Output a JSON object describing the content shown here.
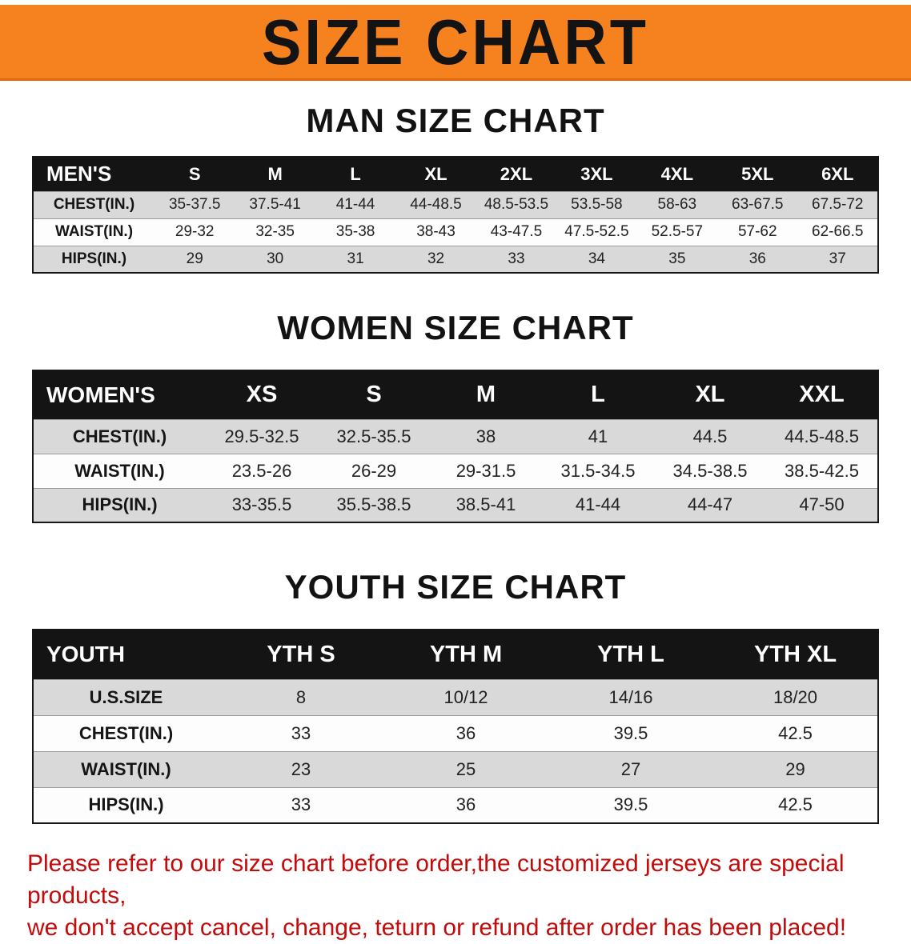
{
  "banner": {
    "title": "SIZE CHART"
  },
  "colors": {
    "banner_bg": "#f5821e",
    "table_header_bg": "#141414",
    "row_alt_gray": "#d9d9d9",
    "disclaimer_red": "#c20b0b"
  },
  "sections": {
    "men": {
      "heading": "MAN SIZE CHART",
      "table": {
        "header": [
          "MEN'S",
          "S",
          "M",
          "L",
          "XL",
          "2XL",
          "3XL",
          "4XL",
          "5XL",
          "6XL"
        ],
        "rows": [
          [
            "CHEST(IN.)",
            "35-37.5",
            "37.5-41",
            "41-44",
            "44-48.5",
            "48.5-53.5",
            "53.5-58",
            "58-63",
            "63-67.5",
            "67.5-72"
          ],
          [
            "WAIST(IN.)",
            "29-32",
            "32-35",
            "35-38",
            "38-43",
            "43-47.5",
            "47.5-52.5",
            "52.5-57",
            "57-62",
            "62-66.5"
          ],
          [
            "HIPS(IN.)",
            "29",
            "30",
            "31",
            "32",
            "33",
            "34",
            "35",
            "36",
            "37"
          ]
        ]
      }
    },
    "women": {
      "heading": "WOMEN SIZE CHART",
      "table": {
        "header": [
          "WOMEN'S",
          "XS",
          "S",
          "M",
          "L",
          "XL",
          "XXL"
        ],
        "rows": [
          [
            "CHEST(IN.)",
            "29.5-32.5",
            "32.5-35.5",
            "38",
            "41",
            "44.5",
            "44.5-48.5"
          ],
          [
            "WAIST(IN.)",
            "23.5-26",
            "26-29",
            "29-31.5",
            "31.5-34.5",
            "34.5-38.5",
            "38.5-42.5"
          ],
          [
            "HIPS(IN.)",
            "33-35.5",
            "35.5-38.5",
            "38.5-41",
            "41-44",
            "44-47",
            "47-50"
          ]
        ]
      }
    },
    "youth": {
      "heading": "YOUTH SIZE CHART",
      "table": {
        "header": [
          "YOUTH",
          "YTH S",
          "YTH M",
          "YTH L",
          "YTH XL"
        ],
        "rows": [
          [
            "U.S.SIZE",
            "8",
            "10/12",
            "14/16",
            "18/20"
          ],
          [
            "CHEST(IN.)",
            "33",
            "36",
            "39.5",
            "42.5"
          ],
          [
            "WAIST(IN.)",
            "23",
            "25",
            "27",
            "29"
          ],
          [
            "HIPS(IN.)",
            "33",
            "36",
            "39.5",
            "42.5"
          ]
        ]
      }
    }
  },
  "disclaimer": {
    "line1": "Please refer to our size chart before order,the customized jerseys are special products,",
    "line2": "we don't accept cancel, change, teturn or refund after order has been placed!"
  }
}
